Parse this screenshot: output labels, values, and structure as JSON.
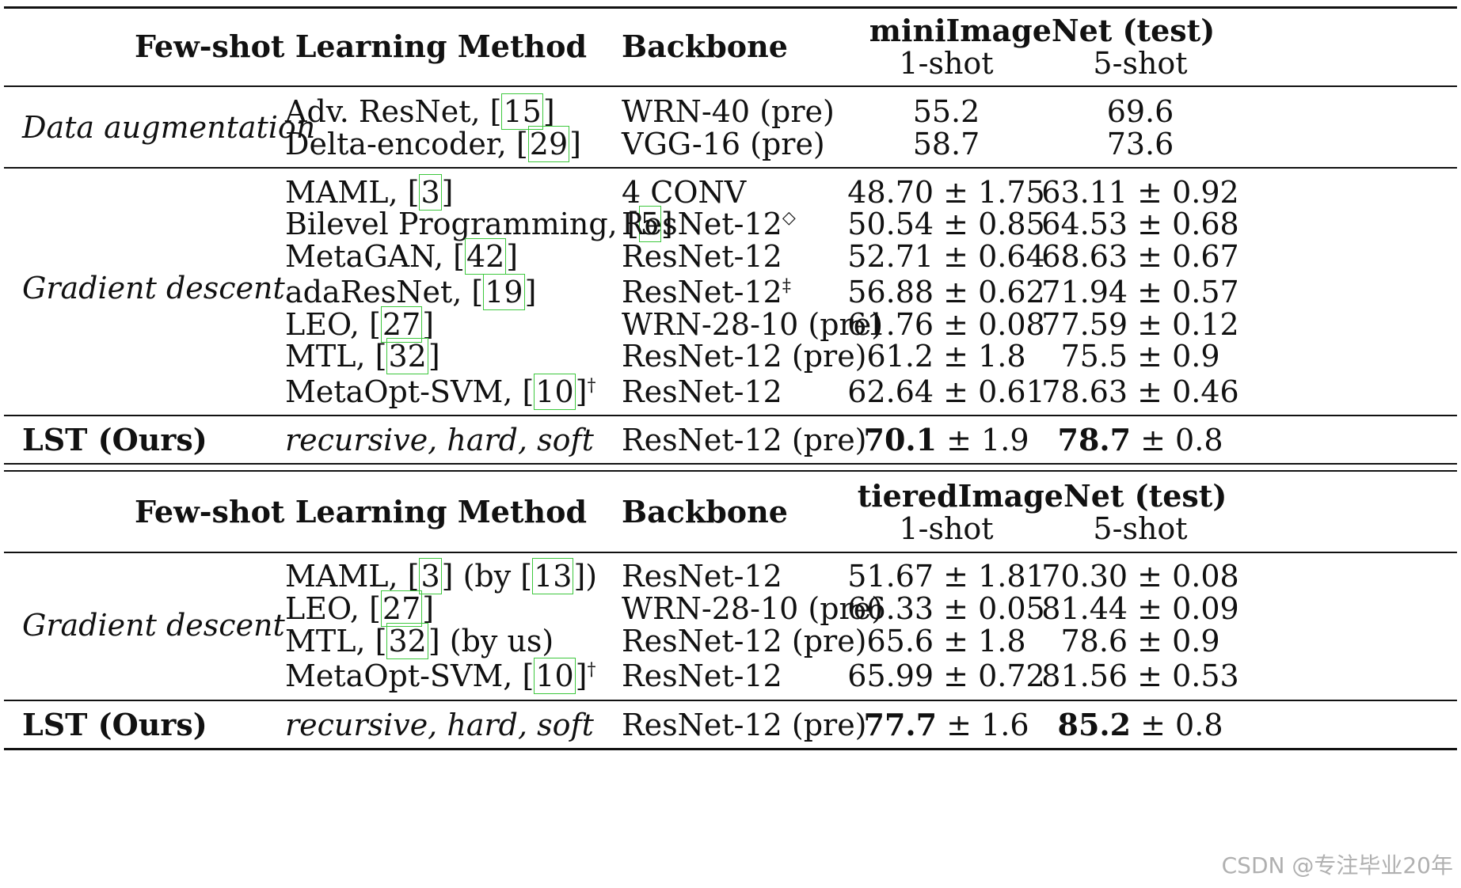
{
  "headers": {
    "method": "Few-shot Learning Method",
    "backbone": "Backbone",
    "one_shot": "1-shot",
    "five_shot": "5-shot"
  },
  "mini": {
    "title": "miniImageNet (test)",
    "group1_label": "Data augmentation",
    "group2_label": "Gradient descent",
    "rows": [
      {
        "method": "Adv. ResNet, ",
        "ref": "15",
        "suffix": "",
        "backbone": "WRN-40 (pre)",
        "bsup": "",
        "s1": "55.2",
        "s5": "69.6"
      },
      {
        "method": "Delta-encoder, ",
        "ref": "29",
        "suffix": "",
        "backbone": "VGG-16 (pre)",
        "bsup": "",
        "s1": "58.7",
        "s5": "73.6"
      },
      {
        "method": "MAML, ",
        "ref": "3",
        "suffix": "",
        "backbone": "4 CONV",
        "bsup": "",
        "s1": "48.70 ± 1.75",
        "s5": "63.11 ± 0.92"
      },
      {
        "method": "Bilevel Programming, ",
        "ref": "5",
        "suffix": "",
        "backbone": "ResNet-12",
        "bsup": "◇",
        "s1": "50.54 ± 0.85",
        "s5": "64.53 ± 0.68"
      },
      {
        "method": "MetaGAN, ",
        "ref": "42",
        "suffix": "",
        "backbone": "ResNet-12",
        "bsup": "",
        "s1": "52.71 ± 0.64",
        "s5": "68.63 ± 0.67"
      },
      {
        "method": "adaResNet, ",
        "ref": "19",
        "suffix": "",
        "backbone": "ResNet-12",
        "bsup": "‡",
        "s1": "56.88 ± 0.62",
        "s5": "71.94 ± 0.57"
      },
      {
        "method": "LEO, ",
        "ref": "27",
        "suffix": "",
        "backbone": "WRN-28-10 (pre)",
        "bsup": "",
        "s1": "61.76 ± 0.08",
        "s5": "77.59 ± 0.12"
      },
      {
        "method": "MTL, ",
        "ref": "32",
        "suffix": "",
        "backbone": "ResNet-12 (pre)",
        "bsup": "",
        "s1": "61.2 ± 1.8",
        "s5": "75.5 ± 0.9"
      },
      {
        "method": "MetaOpt-SVM, ",
        "ref": "10",
        "suffix": "†",
        "backbone": "ResNet-12",
        "bsup": "",
        "s1": "62.64 ± 0.61",
        "s5": "78.63 ± 0.46"
      }
    ],
    "ours": {
      "name": "LST (Ours)",
      "desc": "recursive, hard, soft",
      "backbone": "ResNet-12 (pre)",
      "s1_bold": "70.1",
      "s1_rest": " ± 1.9",
      "s5_bold": "78.7",
      "s5_rest": " ± 0.8"
    }
  },
  "tiered": {
    "title": "tieredImageNet (test)",
    "group_label": "Gradient descent",
    "rows": [
      {
        "method": "MAML, ",
        "ref": "3",
        "mid": " (by ",
        "ref2": "13",
        "end": ")",
        "backbone": "ResNet-12",
        "s1": "51.67 ± 1.81",
        "s5": "70.30 ± 0.08"
      },
      {
        "method": "LEO, ",
        "ref": "27",
        "mid": "",
        "ref2": "",
        "end": "",
        "backbone": "WRN-28-10 (pre)",
        "s1": "66.33 ± 0.05",
        "s5": "81.44 ± 0.09"
      },
      {
        "method": "MTL, ",
        "ref": "32",
        "mid": " (by us)",
        "ref2": "",
        "end": "",
        "backbone": "ResNet-12 (pre)",
        "s1": "65.6 ± 1.8",
        "s5": "78.6 ± 0.9"
      },
      {
        "method": "MetaOpt-SVM, ",
        "ref": "10",
        "mid": "",
        "ref2": "",
        "end": "†",
        "backbone": "ResNet-12",
        "s1": "65.99 ± 0.72",
        "s5": "81.56 ± 0.53"
      }
    ],
    "ours": {
      "name": "LST (Ours)",
      "desc": "recursive, hard, soft",
      "backbone": "ResNet-12 (pre)",
      "s1_bold": "77.7",
      "s1_rest": " ± 1.6",
      "s5_bold": "85.2",
      "s5_rest": " ± 0.8"
    }
  },
  "watermark": "CSDN @专注毕业20年",
  "colors": {
    "ref_box": "#3ec83e",
    "rule": "#111111"
  }
}
